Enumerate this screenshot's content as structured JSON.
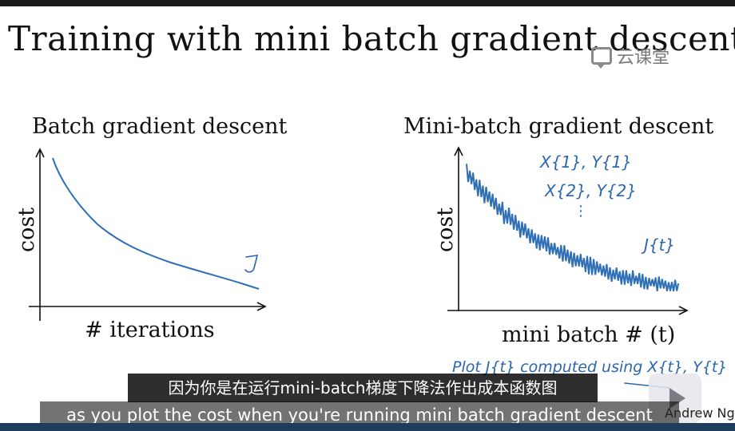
{
  "slide": {
    "title": "Training with mini batch gradient descent",
    "watermark": "云课堂",
    "credit": "Andrew Ng"
  },
  "left_plot": {
    "title": "Batch gradient descent",
    "xlabel": "# iterations",
    "ylabel": "cost",
    "annotation": "J"
  },
  "right_plot": {
    "title": "Mini-batch gradient descent",
    "xlabel": "mini batch # (t)",
    "ylabel": "cost",
    "annotations": [
      "X{1}, Y{1}",
      "X{2}, Y{2}",
      "⋮",
      "J{t}"
    ],
    "bottom_note": "Plot J{t} computed using X{t}, Y{t}"
  },
  "subtitles": {
    "chinese": "因为你是在运行mini-batch梯度下降法作出成本函数图",
    "english": "as you plot the cost when you're running mini batch gradient descent"
  },
  "colors": {
    "ink": "#2b66b0",
    "curve": "#2f6fb5",
    "subtitle_bg": "#000000"
  },
  "icons": [
    "cloud-classroom-logo-icon",
    "play-button-icon"
  ]
}
